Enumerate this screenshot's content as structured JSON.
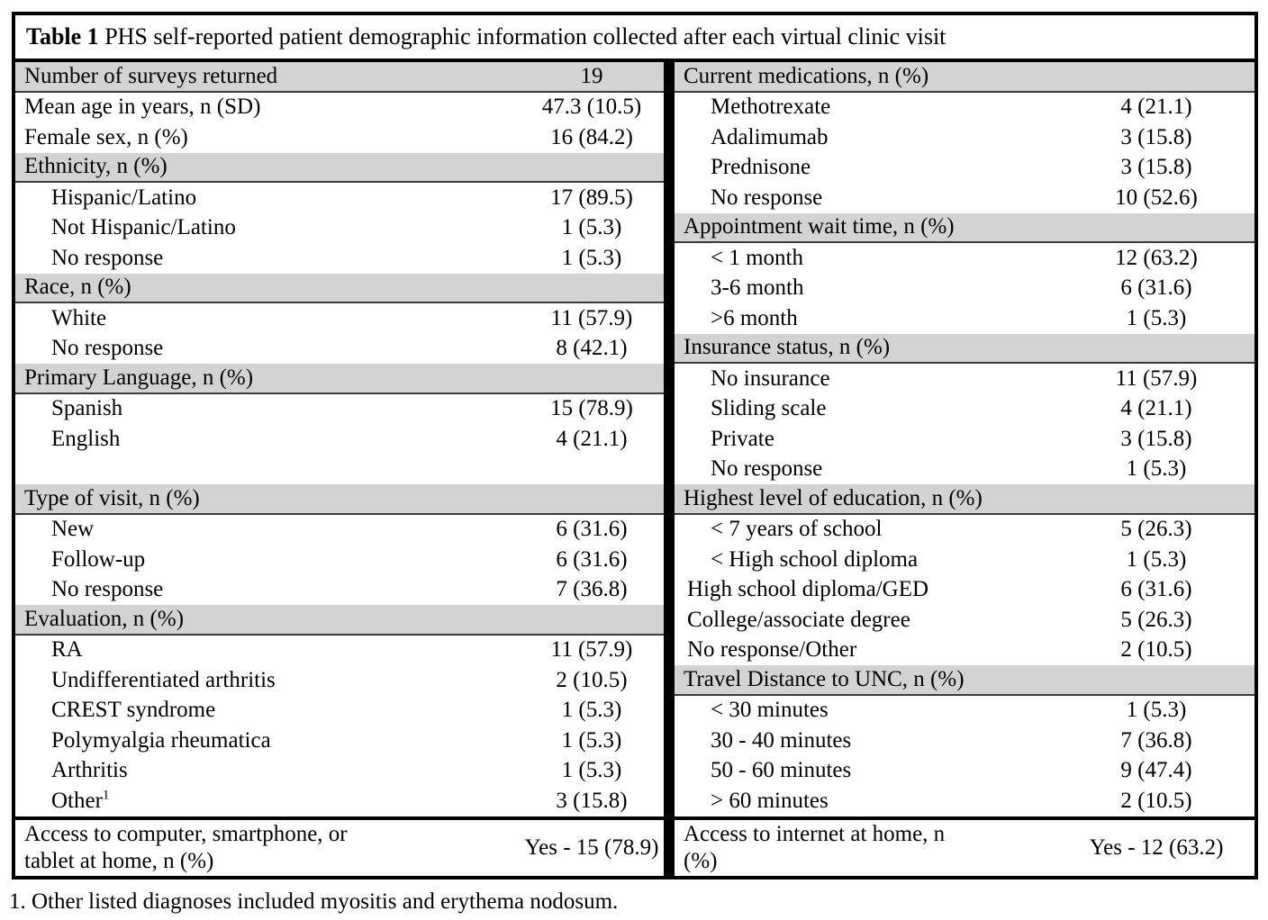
{
  "title": {
    "bold": "Table 1",
    "rest": " PHS self-reported patient demographic information collected after each virtual clinic visit"
  },
  "colors": {
    "row_shade": "#d3d3d3",
    "border": "#000000"
  },
  "left_rows": [
    {
      "label": "Number of surveys returned",
      "value": "19",
      "shaded": true,
      "indent": 0
    },
    {
      "label": "Mean age in years, n (SD)",
      "value": "47.3 (10.5)",
      "indent": 0
    },
    {
      "label": "Female sex, n (%)",
      "value": "16 (84.2)",
      "indent": 0
    },
    {
      "label": "Ethnicity, n (%)",
      "value": "",
      "shaded": true,
      "indent": 0
    },
    {
      "label": "Hispanic/Latino",
      "value": "17 (89.5)",
      "indent": 1
    },
    {
      "label": "Not Hispanic/Latino",
      "value": "1 (5.3)",
      "indent": 1
    },
    {
      "label": "No response",
      "value": "1 (5.3)",
      "indent": 1
    },
    {
      "label": "Race, n (%)",
      "value": "",
      "shaded": true,
      "indent": 0
    },
    {
      "label": "White",
      "value": "11 (57.9)",
      "indent": 1
    },
    {
      "label": "No response",
      "value": "8 (42.1)",
      "indent": 1
    },
    {
      "label": "Primary Language, n (%)",
      "value": "",
      "shaded": true,
      "indent": 0
    },
    {
      "label": "Spanish",
      "value": "15 (78.9)",
      "indent": 1
    },
    {
      "label": "English",
      "value": "4 (21.1)",
      "indent": 1
    },
    {
      "label": "",
      "value": "",
      "indent": 0
    },
    {
      "label": "Type of visit, n (%)",
      "value": "",
      "shaded": true,
      "indent": 0
    },
    {
      "label": "New",
      "value": "6 (31.6)",
      "indent": 1
    },
    {
      "label": "Follow-up",
      "value": "6 (31.6)",
      "indent": 1
    },
    {
      "label": "No response",
      "value": "7 (36.8)",
      "indent": 1
    },
    {
      "label": "Evaluation, n (%)",
      "value": "",
      "shaded": true,
      "indent": 0
    },
    {
      "label": "RA",
      "value": "11 (57.9)",
      "indent": 1
    },
    {
      "label": "Undifferentiated arthritis",
      "value": "2 (10.5)",
      "indent": 1
    },
    {
      "label": "CREST syndrome",
      "value": "1 (5.3)",
      "indent": 1
    },
    {
      "label": "Polymyalgia rheumatica",
      "value": "1 (5.3)",
      "indent": 1
    },
    {
      "label": "Arthritis",
      "value": "1 (5.3)",
      "indent": 1
    },
    {
      "label": "Other",
      "sup": "1",
      "value": "3 (15.8)",
      "indent": 1
    }
  ],
  "left_footer": {
    "label": "Access to computer, smartphone, or tablet at home, n (%)",
    "value": "Yes - 15 (78.9)"
  },
  "right_rows": [
    {
      "label": "Current medications, n (%)",
      "value": "",
      "shaded": true,
      "indent": 0
    },
    {
      "label": "Methotrexate",
      "value": "4 (21.1)",
      "indent": 1
    },
    {
      "label": "Adalimumab",
      "value": "3 (15.8)",
      "indent": 1
    },
    {
      "label": "Prednisone",
      "value": "3 (15.8)",
      "indent": 1
    },
    {
      "label": "No response",
      "value": "10 (52.6)",
      "indent": 1
    },
    {
      "label": "Appointment wait time, n (%)",
      "value": "",
      "shaded": true,
      "indent": 0
    },
    {
      "label": "< 1 month",
      "value": "12 (63.2)",
      "indent": 1
    },
    {
      "label": "3-6 month",
      "value": "6 (31.6)",
      "indent": 1
    },
    {
      "label": ">6 month",
      "value": "1 (5.3)",
      "indent": 1
    },
    {
      "label": "Insurance status, n (%)",
      "value": "",
      "shaded": true,
      "indent": 0
    },
    {
      "label": "No insurance",
      "value": "11 (57.9)",
      "indent": 1
    },
    {
      "label": "Sliding scale",
      "value": "4 (21.1)",
      "indent": 1
    },
    {
      "label": "Private",
      "value": "3 (15.8)",
      "indent": 1
    },
    {
      "label": "No response",
      "value": "1 (5.3)",
      "indent": 1
    },
    {
      "label": "Highest level of education, n (%)",
      "value": "",
      "shaded": true,
      "indent": 0
    },
    {
      "label": "< 7 years of school",
      "value": "5 (26.3)",
      "indent": 1
    },
    {
      "label": "< High school diploma",
      "value": "1 (5.3)",
      "indent": 1
    },
    {
      "label": "High school diploma/GED",
      "value": "6 (31.6)",
      "indent": 2
    },
    {
      "label": "College/associate degree",
      "value": "5 (26.3)",
      "indent": 2
    },
    {
      "label": "No response/Other",
      "value": "2 (10.5)",
      "indent": 2
    },
    {
      "label": "Travel Distance to UNC, n (%)",
      "value": "",
      "shaded": true,
      "indent": 0
    },
    {
      "label": "< 30 minutes",
      "value": "1 (5.3)",
      "indent": 1
    },
    {
      "label": "30 - 40 minutes",
      "value": "7 (36.8)",
      "indent": 1
    },
    {
      "label": "50 - 60 minutes",
      "value": "9 (47.4)",
      "indent": 1
    },
    {
      "label": "> 60 minutes",
      "value": "2 (10.5)",
      "indent": 1
    }
  ],
  "right_footer": {
    "label": "Access to internet at home, n (%)",
    "value": "Yes - 12 (63.2)"
  },
  "footnote": "1. Other listed diagnoses included myositis and erythema nodosum."
}
